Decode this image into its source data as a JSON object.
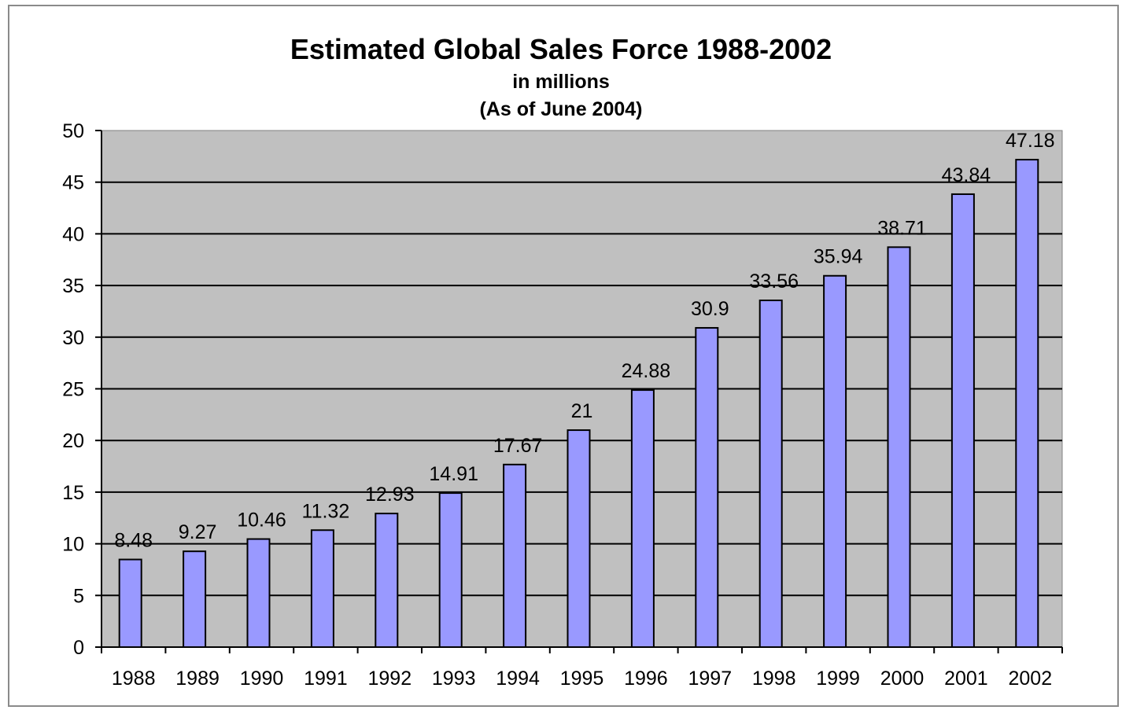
{
  "chart_data": {
    "type": "bar",
    "title": "Estimated Global Sales Force 1988-2002",
    "subtitle": [
      "in millions",
      "(As of June 2004)"
    ],
    "xlabel": "",
    "ylabel": "",
    "ylim": [
      0,
      50
    ],
    "yticks": [
      0,
      5,
      10,
      15,
      20,
      25,
      30,
      35,
      40,
      45,
      50
    ],
    "categories": [
      "1988",
      "1989",
      "1990",
      "1991",
      "1992",
      "1993",
      "1994",
      "1995",
      "1996",
      "1997",
      "1998",
      "1999",
      "2000",
      "2001",
      "2002"
    ],
    "values": [
      8.48,
      9.27,
      10.46,
      11.32,
      12.93,
      14.91,
      17.67,
      21,
      24.88,
      30.9,
      33.56,
      35.94,
      38.71,
      43.84,
      47.18
    ],
    "data_labels": [
      "8.48",
      "9.27",
      "10.46",
      "11.32",
      "12.93",
      "14.91",
      "17.67",
      "21",
      "24.88",
      "30.9",
      "33.56",
      "35.94",
      "38.71",
      "43.84",
      "47.18"
    ],
    "grid": true,
    "legend": "none",
    "colors": {
      "plot_background": "#c0c0c0",
      "bar_fill": "#9999ff",
      "bar_stroke": "#000000",
      "gridline": "#000000"
    }
  }
}
